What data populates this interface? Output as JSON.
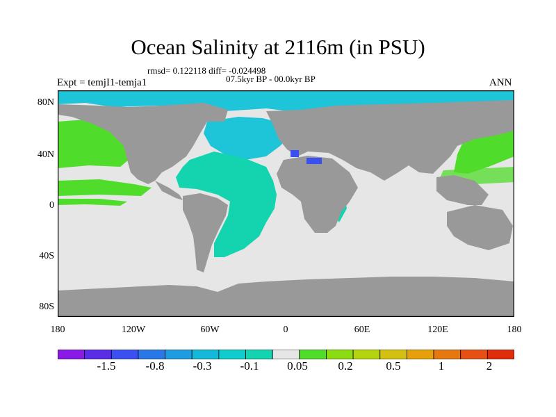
{
  "title": "Ocean Salinity at 2116m (in PSU)",
  "stats_line": "rmsd= 0.122118 diff= -0.024498",
  "period_line": "07.5kyr BP - 00.0kyr BP",
  "experiment": "Expt = temjI1-temja1",
  "season": "ANN",
  "y_ticks": [
    "80N",
    "40N",
    "0",
    "40S",
    "80S"
  ],
  "x_ticks": [
    "180",
    "120W",
    "60W",
    "0",
    "60E",
    "120E",
    "180"
  ],
  "colorbar": {
    "colors": [
      "#8a1ae6",
      "#5a2ee6",
      "#3a50f0",
      "#2a78e8",
      "#1e9ce0",
      "#14b8d8",
      "#10cccc",
      "#14d4b0",
      "#e6e6e6",
      "#50dc2a",
      "#8cdc14",
      "#b4d410",
      "#d4c010",
      "#e6a00c",
      "#e67810",
      "#e65014",
      "#e02e0c"
    ],
    "labels": [
      "-1.5",
      "-0.8",
      "-0.3",
      "-0.1",
      "0.05",
      "0.2",
      "0.5",
      "1",
      "2"
    ]
  },
  "map_colors": {
    "land": "#999999",
    "neutral_ocean": "#e6e6e6",
    "arctic_freshening": "#1ec4d8",
    "atlantic_freshening": "#14d4b0",
    "pacific_increase": "#50dc2a",
    "mediterranean": "#3a50f0"
  }
}
